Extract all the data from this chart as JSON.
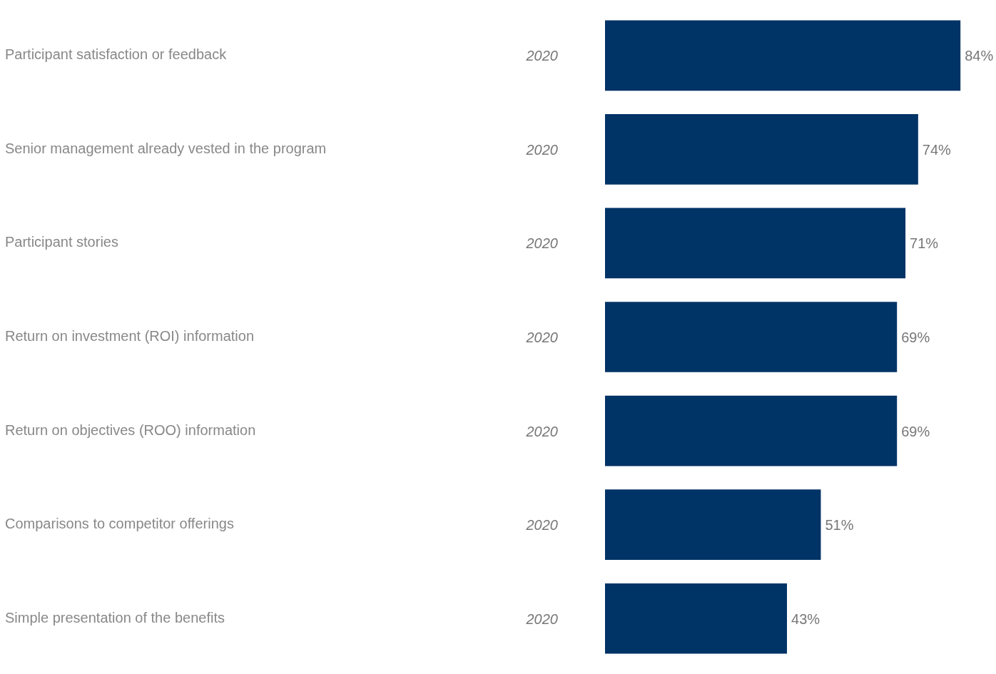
{
  "chart_data": {
    "type": "bar",
    "orientation": "horizontal",
    "grid": false,
    "categories": [
      "Participant satisfaction or feedback",
      "Senior management already vested in the program",
      "Participant stories",
      "Return on investment (ROI) information",
      "Return on objectives (ROO) information",
      "Comparisons to competitor offerings",
      "Simple presentation of the benefits"
    ],
    "series": [
      {
        "name": "2020",
        "color": "#003366",
        "values": [
          84,
          74,
          71,
          69,
          69,
          51,
          43
        ],
        "value_labels": [
          "84%",
          "74%",
          "71%",
          "69%",
          "69%",
          "51%",
          "43%"
        ]
      }
    ]
  }
}
